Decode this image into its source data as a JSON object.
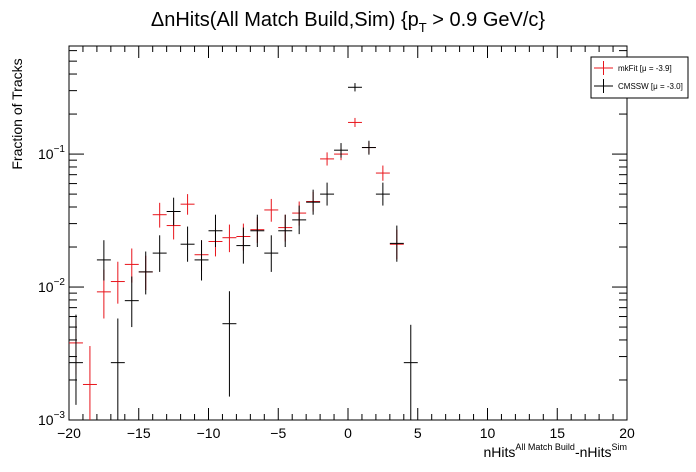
{
  "chart_data": {
    "type": "scatter",
    "title": {
      "prefix": "ΔnHits(All Match Build,Sim) {p",
      "sub": "T",
      "suffix": " > 0.9 GeV/c}"
    },
    "xlabel": {
      "a": "nHits",
      "a_sup": "All Match Build",
      "b": "-nHits",
      "b_sup": "Sim"
    },
    "ylabel": "Fraction of Tracks",
    "xlim": [
      -20,
      20
    ],
    "ylim": [
      0.001,
      0.65
    ],
    "yscale": "log",
    "grid": false,
    "legend_position": "top-right",
    "x_ticks": [
      "−20",
      "−15",
      "−10",
      "−5",
      "0",
      "5",
      "10",
      "15",
      "20"
    ],
    "y_ticks": [
      {
        "base": "10",
        "exp": "−1"
      },
      {
        "base": "10",
        "exp": "−2"
      },
      {
        "base": "10",
        "exp": "−3"
      }
    ],
    "series": [
      {
        "name": "mkFit",
        "legend_label": "mkFit  [μ = -3.9]",
        "color": "#e8141b",
        "points": [
          {
            "x": -19.5,
            "y": 0.0038,
            "lo": 0.0022,
            "hi": 0.0056
          },
          {
            "x": -18.5,
            "y": 0.00185,
            "lo": 0.001,
            "hi": 0.0036
          },
          {
            "x": -17.5,
            "y": 0.0092,
            "lo": 0.0058,
            "hi": 0.0135
          },
          {
            "x": -16.5,
            "y": 0.011,
            "lo": 0.0075,
            "hi": 0.0155
          },
          {
            "x": -15.5,
            "y": 0.0148,
            "lo": 0.0108,
            "hi": 0.0195
          },
          {
            "x": -14.5,
            "y": 0.013,
            "lo": 0.0095,
            "hi": 0.0172
          },
          {
            "x": -13.5,
            "y": 0.035,
            "lo": 0.028,
            "hi": 0.043
          },
          {
            "x": -12.5,
            "y": 0.029,
            "lo": 0.0228,
            "hi": 0.0365
          },
          {
            "x": -11.5,
            "y": 0.042,
            "lo": 0.035,
            "hi": 0.05
          },
          {
            "x": -10.5,
            "y": 0.0175,
            "lo": 0.0132,
            "hi": 0.0225
          },
          {
            "x": -9.5,
            "y": 0.022,
            "lo": 0.017,
            "hi": 0.0278
          },
          {
            "x": -8.5,
            "y": 0.0235,
            "lo": 0.0183,
            "hi": 0.0295
          },
          {
            "x": -7.5,
            "y": 0.024,
            "lo": 0.0188,
            "hi": 0.03
          },
          {
            "x": -6.5,
            "y": 0.027,
            "lo": 0.0215,
            "hi": 0.0335
          },
          {
            "x": -5.5,
            "y": 0.038,
            "lo": 0.031,
            "hi": 0.046
          },
          {
            "x": -4.5,
            "y": 0.028,
            "lo": 0.022,
            "hi": 0.035
          },
          {
            "x": -3.5,
            "y": 0.036,
            "lo": 0.029,
            "hi": 0.044
          },
          {
            "x": -2.5,
            "y": 0.044,
            "lo": 0.037,
            "hi": 0.052
          },
          {
            "x": -1.5,
            "y": 0.092,
            "lo": 0.082,
            "hi": 0.103
          },
          {
            "x": -0.5,
            "y": 0.1,
            "lo": 0.09,
            "hi": 0.111
          },
          {
            "x": 0.5,
            "y": 0.173,
            "lo": 0.16,
            "hi": 0.187
          },
          {
            "x": 1.5,
            "y": 0.112,
            "lo": 0.101,
            "hi": 0.123
          },
          {
            "x": 2.5,
            "y": 0.072,
            "lo": 0.063,
            "hi": 0.082
          },
          {
            "x": 3.5,
            "y": 0.021,
            "lo": 0.0162,
            "hi": 0.027
          }
        ]
      },
      {
        "name": "CMSSW",
        "legend_label": "CMSSW  [μ = -3.0]",
        "color": "#000000",
        "points": [
          {
            "x": -19.5,
            "y": 0.0027,
            "lo": 0.0013,
            "hi": 0.0062
          },
          {
            "x": -17.5,
            "y": 0.016,
            "lo": 0.0112,
            "hi": 0.0225
          },
          {
            "x": -16.5,
            "y": 0.0027,
            "lo": 0.001,
            "hi": 0.0058
          },
          {
            "x": -15.5,
            "y": 0.0079,
            "lo": 0.005,
            "hi": 0.012
          },
          {
            "x": -14.5,
            "y": 0.013,
            "lo": 0.0088,
            "hi": 0.0185
          },
          {
            "x": -13.5,
            "y": 0.018,
            "lo": 0.013,
            "hi": 0.0245
          },
          {
            "x": -12.5,
            "y": 0.037,
            "lo": 0.029,
            "hi": 0.047
          },
          {
            "x": -11.5,
            "y": 0.021,
            "lo": 0.0155,
            "hi": 0.0285
          },
          {
            "x": -10.5,
            "y": 0.016,
            "lo": 0.0112,
            "hi": 0.0225
          },
          {
            "x": -9.5,
            "y": 0.0265,
            "lo": 0.02,
            "hi": 0.035
          },
          {
            "x": -8.5,
            "y": 0.0053,
            "lo": 0.0015,
            "hi": 0.0093
          },
          {
            "x": -7.5,
            "y": 0.0205,
            "lo": 0.015,
            "hi": 0.028
          },
          {
            "x": -6.5,
            "y": 0.0265,
            "lo": 0.02,
            "hi": 0.035
          },
          {
            "x": -5.5,
            "y": 0.018,
            "lo": 0.013,
            "hi": 0.0245
          },
          {
            "x": -4.5,
            "y": 0.0265,
            "lo": 0.02,
            "hi": 0.035
          },
          {
            "x": -3.5,
            "y": 0.032,
            "lo": 0.025,
            "hi": 0.041
          },
          {
            "x": -2.5,
            "y": 0.0435,
            "lo": 0.035,
            "hi": 0.054
          },
          {
            "x": -1.5,
            "y": 0.05,
            "lo": 0.041,
            "hi": 0.061
          },
          {
            "x": -0.5,
            "y": 0.107,
            "lo": 0.094,
            "hi": 0.121
          },
          {
            "x": 0.5,
            "y": 0.318,
            "lo": 0.296,
            "hi": 0.342
          },
          {
            "x": 1.5,
            "y": 0.112,
            "lo": 0.099,
            "hi": 0.126
          },
          {
            "x": 2.5,
            "y": 0.05,
            "lo": 0.041,
            "hi": 0.061
          },
          {
            "x": 3.5,
            "y": 0.0213,
            "lo": 0.0155,
            "hi": 0.029
          },
          {
            "x": 4.5,
            "y": 0.0027,
            "lo": 0.001,
            "hi": 0.0052
          }
        ]
      }
    ]
  }
}
